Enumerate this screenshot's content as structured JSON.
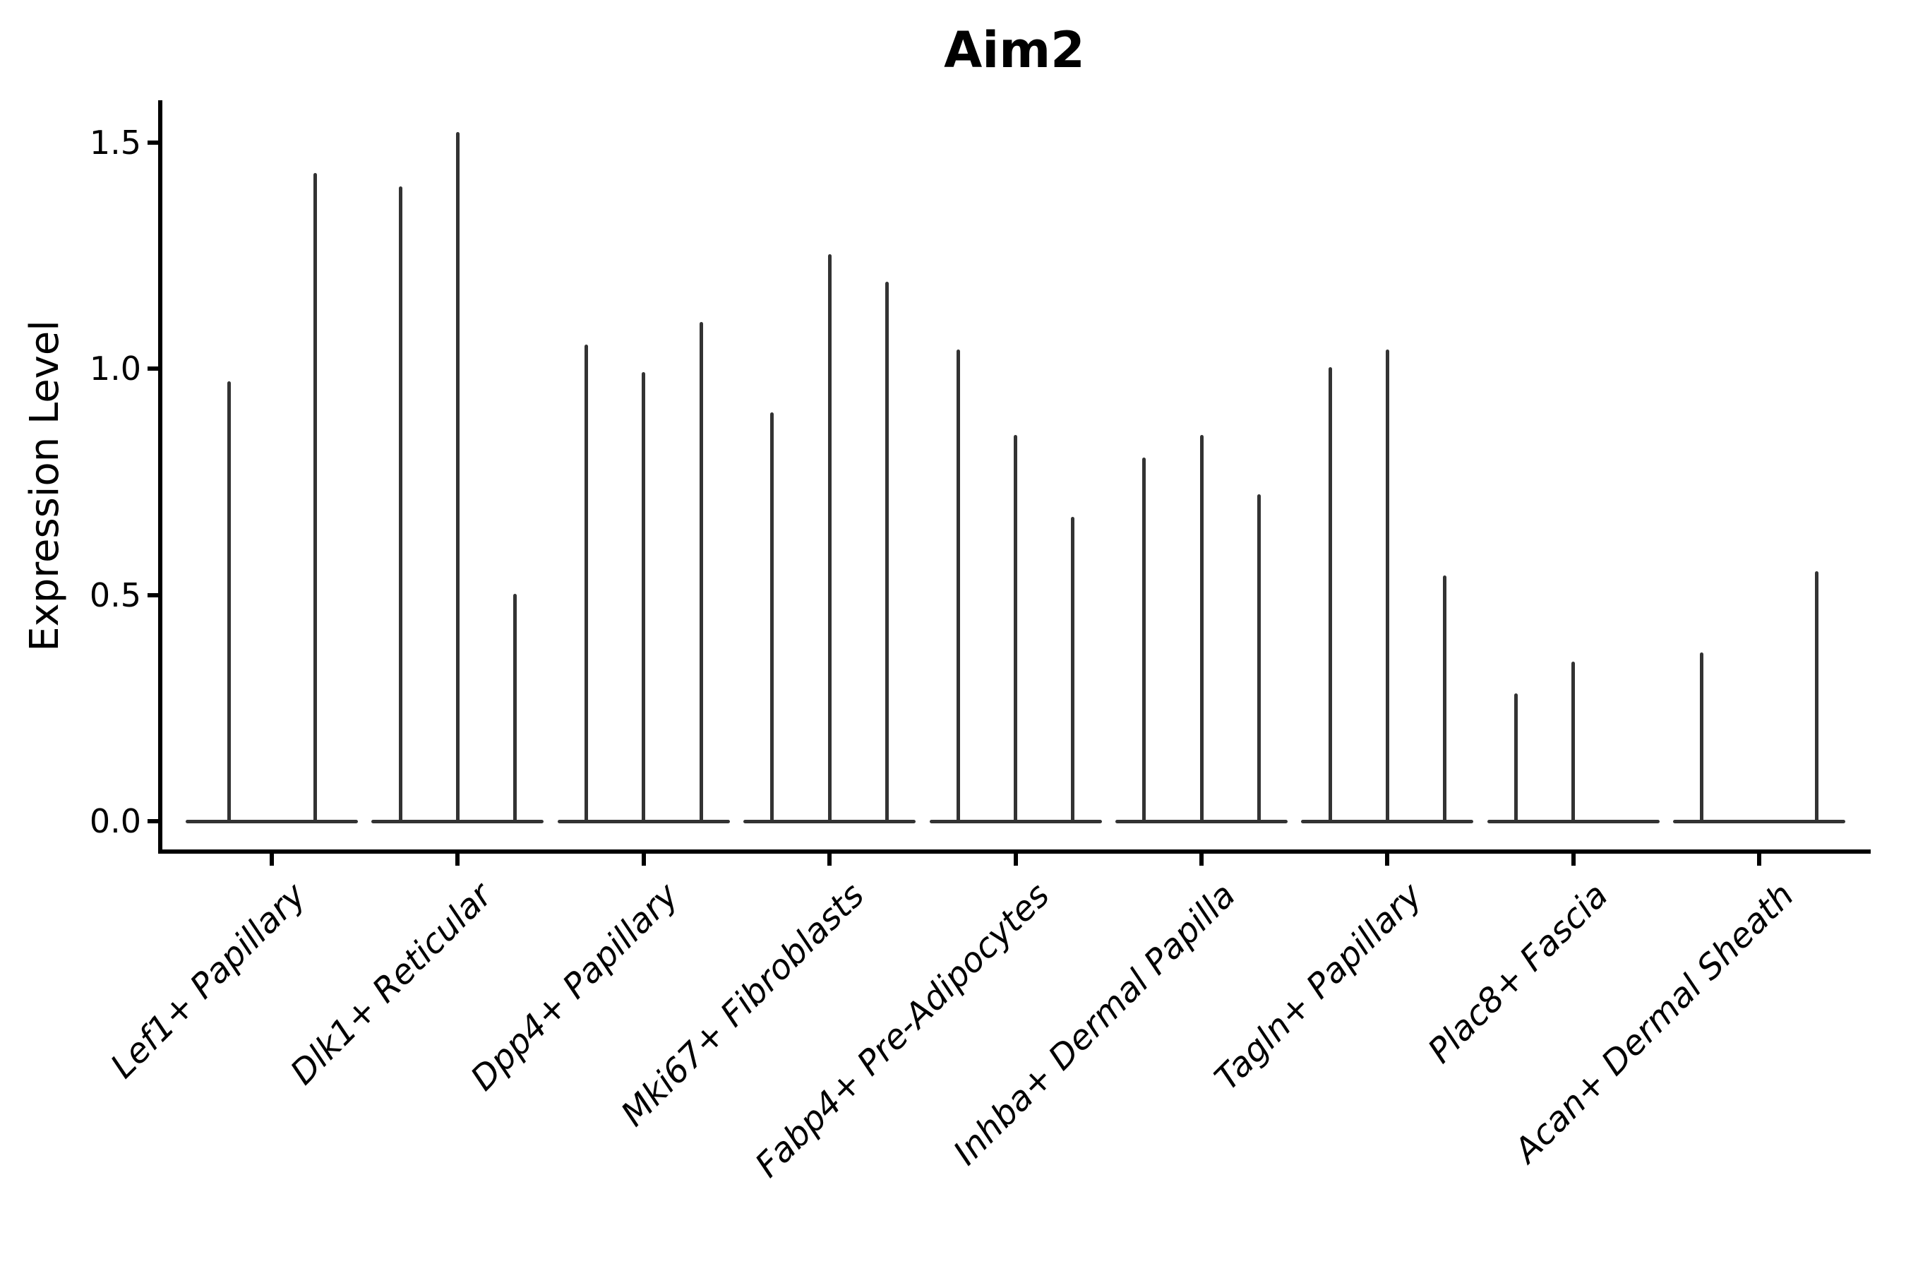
{
  "title": "Aim2",
  "ylabel": "Expression Level",
  "chart_data": {
    "type": "violin",
    "title": "Aim2",
    "xlabel": "",
    "ylabel": "Expression Level",
    "ytick_labels": [
      "0.0",
      "0.5",
      "1.0",
      "1.5"
    ],
    "ytick_values": [
      0.0,
      0.5,
      1.0,
      1.5
    ],
    "ylim": [
      -0.09,
      1.6
    ],
    "grid": false,
    "legend": "none",
    "line_color": "#333333",
    "axis_color": "#000000",
    "categories": [
      "Lef1+ Papillary",
      "Dlk1+ Reticular",
      "Dpp4+ Papillary",
      "Mki67+ Fibroblasts",
      "Fabp4+ Pre-Adipocytes",
      "Inhba+ Dermal Papilla",
      "Tagln+ Papillary",
      "Plac8+ Fascia",
      "Acan+ Dermal Sheath"
    ],
    "groups": [
      {
        "category": "Lef1+ Papillary",
        "violin_peaks": [
          0.97,
          1.43
        ]
      },
      {
        "category": "Dlk1+ Reticular",
        "violin_peaks": [
          1.4,
          1.52,
          0.5
        ]
      },
      {
        "category": "Dpp4+ Papillary",
        "violin_peaks": [
          1.05,
          0.99,
          1.1
        ]
      },
      {
        "category": "Mki67+ Fibroblasts",
        "violin_peaks": [
          0.9,
          1.25,
          1.19
        ]
      },
      {
        "category": "Fabp4+ Pre-Adipocytes",
        "violin_peaks": [
          1.04,
          0.85,
          0.67
        ]
      },
      {
        "category": "Inhba+ Dermal Papilla",
        "violin_peaks": [
          0.8,
          0.85,
          0.72
        ]
      },
      {
        "category": "Tagln+ Papillary",
        "violin_peaks": [
          1.0,
          1.04,
          0.54
        ]
      },
      {
        "category": "Plac8+ Fascia",
        "violin_peaks": [
          0.28,
          0.35,
          0.0
        ]
      },
      {
        "category": "Acan+ Dermal Sheath",
        "violin_peaks": [
          0.37,
          0.0,
          0.55
        ]
      }
    ]
  }
}
